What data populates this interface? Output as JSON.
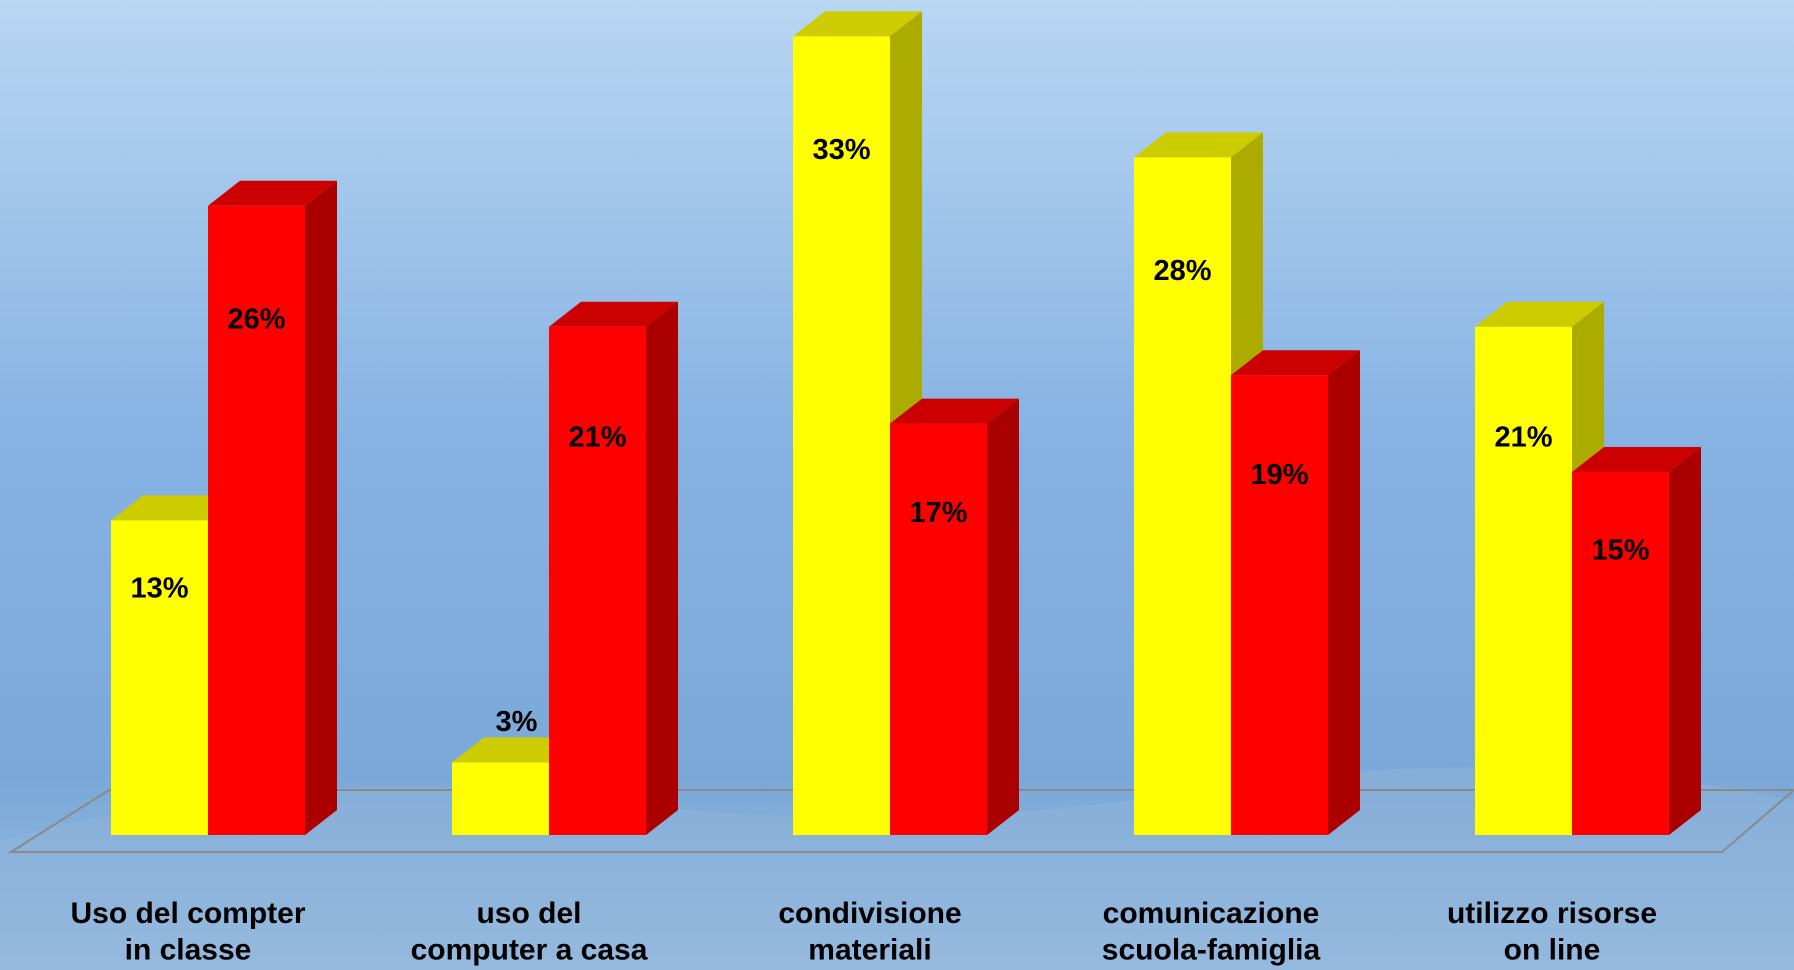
{
  "chart_data": {
    "type": "bar3d",
    "categories": [
      "Uso del compter\nin classe",
      "uso del\ncomputer a casa",
      "condivisione\nmateriali",
      "comunicazione\nscuola-famiglia",
      "utilizzo risorse\non line"
    ],
    "series": [
      {
        "color": "#ffff00",
        "values": [
          13,
          3,
          33,
          28,
          21
        ],
        "value_labels": [
          "13%",
          "3%",
          "33%",
          "28%",
          "21%"
        ]
      },
      {
        "color": "#ff0000",
        "values": [
          26,
          21,
          17,
          19,
          15
        ],
        "value_labels": [
          "26%",
          "21%",
          "17%",
          "19%",
          "15%"
        ]
      }
    ]
  }
}
